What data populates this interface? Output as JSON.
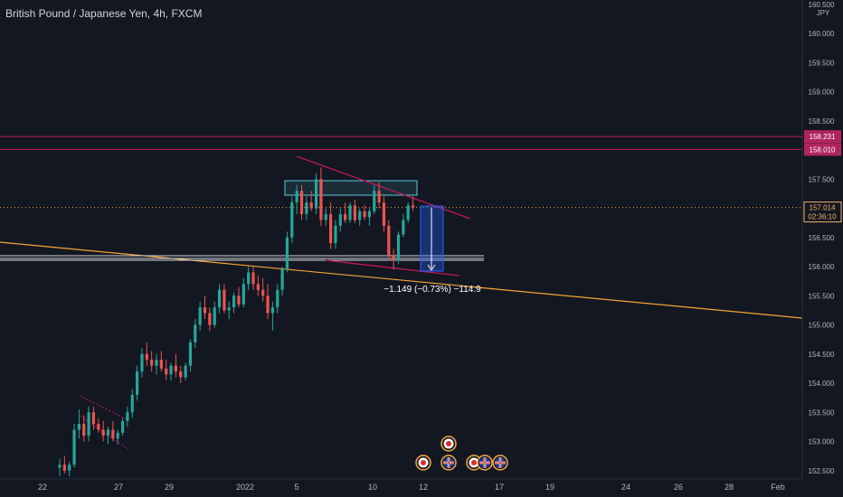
{
  "header": {
    "symbol_title": "British Pound / Japanese Yen, 4h, FXCM"
  },
  "price_scale": {
    "currency": "JPY",
    "top_label": "160.500",
    "ticks": [
      "160.000",
      "159.500",
      "159.000",
      "158.500",
      "157.500",
      "156.500",
      "156.000",
      "155.500",
      "155.000",
      "154.500",
      "154.000",
      "153.500",
      "153.000",
      "152.500"
    ]
  },
  "price_tags": [
    {
      "label": "158.231",
      "color": "#b0245f"
    },
    {
      "label": "158.010",
      "color": "#b0245f"
    },
    {
      "label": "157.014",
      "sublabel": "02:36:10",
      "color": "#f5b069"
    }
  ],
  "measure_label": "−1.149 (−0.73%) −114.9",
  "x_ticks": [
    "22",
    "27",
    "29",
    "2022",
    "5",
    "10",
    "12",
    "17",
    "19",
    "24",
    "26",
    "28",
    "Feb"
  ],
  "events": [
    "target-icon",
    "flag-icon",
    "target-icon",
    "target-icon",
    "flag-icon",
    "flag-icon"
  ],
  "colors": {
    "up": "#26a69a",
    "down": "#ef5350",
    "resistance": "#c2185b",
    "trend": "#f7a531",
    "zone": "#5ec8d8",
    "measure": "#2962ff"
  },
  "chart_data": {
    "type": "candlestick",
    "title": "British Pound / Japanese Yen, 4h, FXCM",
    "y_range": [
      152.4,
      160.6
    ],
    "ohlc": [
      [
        152.55,
        152.7,
        152.4,
        152.6
      ],
      [
        152.6,
        152.75,
        152.45,
        152.5
      ],
      [
        152.5,
        152.65,
        152.4,
        152.6
      ],
      [
        152.6,
        153.3,
        152.55,
        153.2
      ],
      [
        153.2,
        153.55,
        153.05,
        153.3
      ],
      [
        153.3,
        153.45,
        153.0,
        153.1
      ],
      [
        153.1,
        153.6,
        153.0,
        153.5
      ],
      [
        153.5,
        153.6,
        153.2,
        153.3
      ],
      [
        153.3,
        153.4,
        153.15,
        153.2
      ],
      [
        153.2,
        153.35,
        153.0,
        153.1
      ],
      [
        153.1,
        153.25,
        152.95,
        153.2
      ],
      [
        153.2,
        153.35,
        153.0,
        153.05
      ],
      [
        153.05,
        153.2,
        152.95,
        153.15
      ],
      [
        153.15,
        153.4,
        153.1,
        153.35
      ],
      [
        153.35,
        153.6,
        153.25,
        153.5
      ],
      [
        153.5,
        153.9,
        153.4,
        153.8
      ],
      [
        153.8,
        154.3,
        153.7,
        154.2
      ],
      [
        154.2,
        154.6,
        154.1,
        154.5
      ],
      [
        154.5,
        154.7,
        154.3,
        154.4
      ],
      [
        154.4,
        154.55,
        154.2,
        154.3
      ],
      [
        154.3,
        154.5,
        154.15,
        154.4
      ],
      [
        154.4,
        154.55,
        154.2,
        154.25
      ],
      [
        154.25,
        154.4,
        154.05,
        154.15
      ],
      [
        154.15,
        154.35,
        154.05,
        154.3
      ],
      [
        154.3,
        154.5,
        154.1,
        154.2
      ],
      [
        154.2,
        154.3,
        154.0,
        154.1
      ],
      [
        154.1,
        154.35,
        154.05,
        154.3
      ],
      [
        154.3,
        154.75,
        154.2,
        154.7
      ],
      [
        154.7,
        155.1,
        154.6,
        155.0
      ],
      [
        155.0,
        155.4,
        154.9,
        155.3
      ],
      [
        155.3,
        155.5,
        155.1,
        155.2
      ],
      [
        155.2,
        155.3,
        154.9,
        155.0
      ],
      [
        155.0,
        155.4,
        154.95,
        155.3
      ],
      [
        155.3,
        155.7,
        155.2,
        155.6
      ],
      [
        155.6,
        155.7,
        155.2,
        155.25
      ],
      [
        155.25,
        155.4,
        155.1,
        155.3
      ],
      [
        155.3,
        155.55,
        155.2,
        155.5
      ],
      [
        155.5,
        155.65,
        155.3,
        155.35
      ],
      [
        155.35,
        155.8,
        155.3,
        155.7
      ],
      [
        155.7,
        156.0,
        155.6,
        155.9
      ],
      [
        155.9,
        156.0,
        155.6,
        155.7
      ],
      [
        155.7,
        155.85,
        155.5,
        155.6
      ],
      [
        155.6,
        155.8,
        155.4,
        155.5
      ],
      [
        155.5,
        155.7,
        155.1,
        155.2
      ],
      [
        155.2,
        155.4,
        154.9,
        155.3
      ],
      [
        155.3,
        155.7,
        155.2,
        155.6
      ],
      [
        155.6,
        156.0,
        155.5,
        155.95
      ],
      [
        155.95,
        156.6,
        155.9,
        156.5
      ],
      [
        156.5,
        157.2,
        156.4,
        157.1
      ],
      [
        157.1,
        157.4,
        156.9,
        157.3
      ],
      [
        157.3,
        157.4,
        156.8,
        156.9
      ],
      [
        156.9,
        157.2,
        156.8,
        157.1
      ],
      [
        157.1,
        157.3,
        156.95,
        157.0
      ],
      [
        157.0,
        157.6,
        156.9,
        157.5
      ],
      [
        157.5,
        157.7,
        156.7,
        156.8
      ],
      [
        156.8,
        157.0,
        156.7,
        156.9
      ],
      [
        156.9,
        157.1,
        156.3,
        156.4
      ],
      [
        156.4,
        156.8,
        156.3,
        156.7
      ],
      [
        156.7,
        157.0,
        156.6,
        156.9
      ],
      [
        156.9,
        157.1,
        156.75,
        156.8
      ],
      [
        156.8,
        157.1,
        156.75,
        157.05
      ],
      [
        157.05,
        157.15,
        156.75,
        156.8
      ],
      [
        156.8,
        157.0,
        156.7,
        156.95
      ],
      [
        156.95,
        157.05,
        156.8,
        156.85
      ],
      [
        156.85,
        157.0,
        156.7,
        156.95
      ],
      [
        156.95,
        157.4,
        156.9,
        157.3
      ],
      [
        157.3,
        157.45,
        157.0,
        157.1
      ],
      [
        157.1,
        157.2,
        156.6,
        156.7
      ],
      [
        156.7,
        156.8,
        156.1,
        156.2
      ],
      [
        156.2,
        156.3,
        155.95,
        156.1
      ],
      [
        156.1,
        156.6,
        156.05,
        156.55
      ],
      [
        156.55,
        156.9,
        156.5,
        156.8
      ],
      [
        156.8,
        157.1,
        156.75,
        157.05
      ],
      [
        157.05,
        157.2,
        156.95,
        157.01
      ]
    ]
  }
}
